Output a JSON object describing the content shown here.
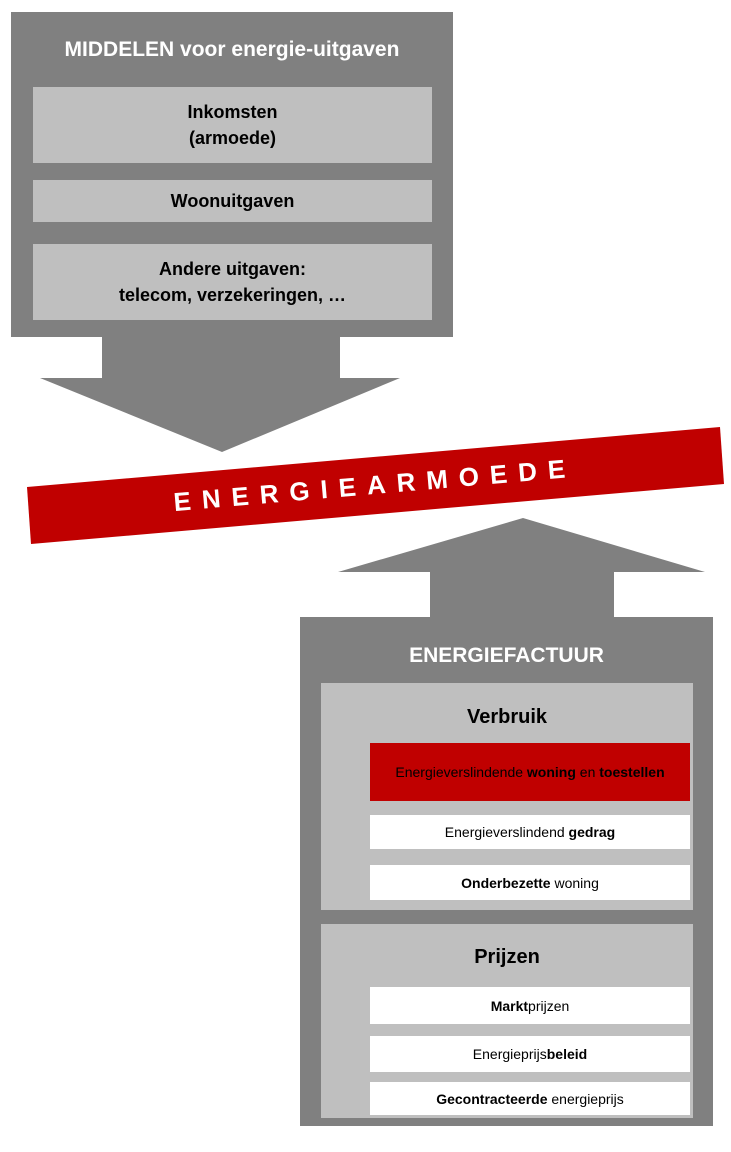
{
  "middelen": {
    "title": "MIDDELEN voor energie-uitgaven",
    "items": [
      [
        "Inkomsten",
        "(armoede)"
      ],
      [
        "Woonuitgaven"
      ],
      [
        "Andere uitgaven:",
        "telecom, verzekeringen, …"
      ]
    ]
  },
  "banner": "ENERGIEARMOEDE",
  "factuur": {
    "title": "ENERGIEFACTUUR",
    "sections": [
      {
        "title": "Verbruik",
        "items": [
          [
            {
              "text": "Energieverslindende ",
              "bold": false
            },
            {
              "text": "woning",
              "bold": true
            },
            {
              "text": " en ",
              "bold": false
            },
            {
              "text": "toestellen",
              "bold": true
            }
          ],
          [
            {
              "text": "Energieverslindend ",
              "bold": false
            },
            {
              "text": "gedrag",
              "bold": true
            }
          ],
          [
            {
              "text": "Onderbezette",
              "bold": true
            },
            {
              "text": " woning",
              "bold": false
            }
          ]
        ]
      },
      {
        "title": "Prijzen",
        "items": [
          [
            {
              "text": "Markt",
              "bold": true
            },
            {
              "text": "prijzen",
              "bold": false
            }
          ],
          [
            {
              "text": "Energieprijs",
              "bold": false
            },
            {
              "text": "beleid",
              "bold": true
            }
          ],
          [
            {
              "text": "Gecontracteerde",
              "bold": true
            },
            {
              "text": " energieprijs",
              "bold": false
            }
          ]
        ]
      }
    ]
  }
}
